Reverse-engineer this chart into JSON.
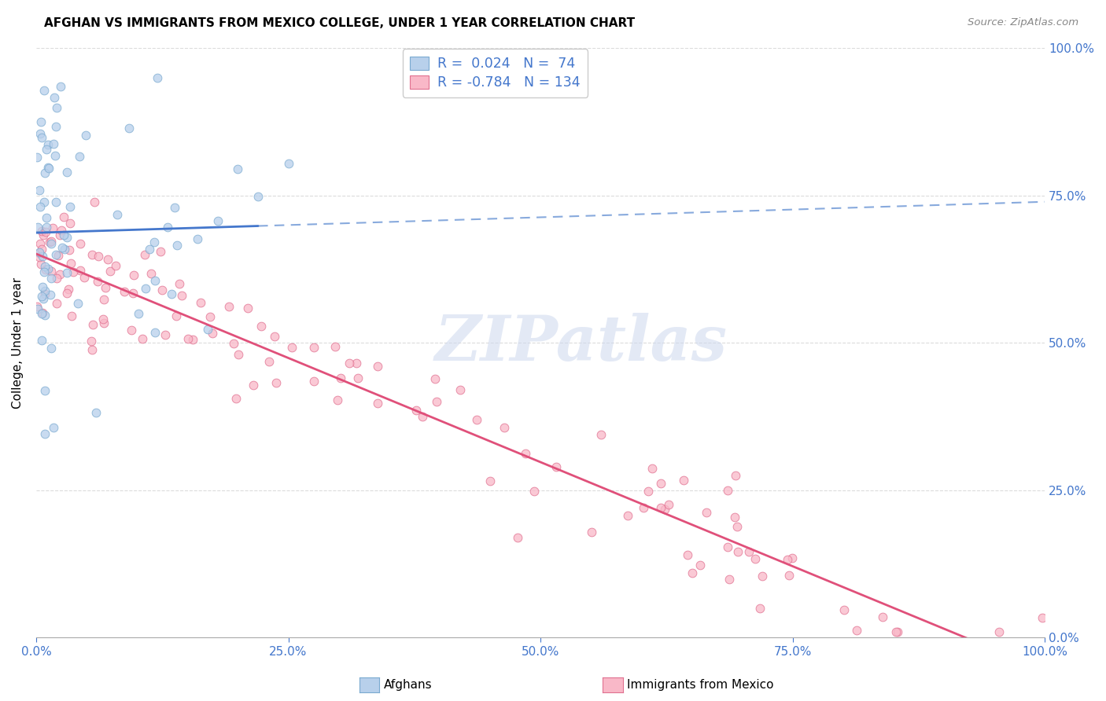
{
  "title": "AFGHAN VS IMMIGRANTS FROM MEXICO COLLEGE, UNDER 1 YEAR CORRELATION CHART",
  "source": "Source: ZipAtlas.com",
  "ylabel": "College, Under 1 year",
  "xlim": [
    0.0,
    1.0
  ],
  "ylim": [
    0.0,
    1.0
  ],
  "xtick_labels": [
    "0.0%",
    "25.0%",
    "50.0%",
    "75.0%",
    "100.0%"
  ],
  "ytick_labels_right": [
    "0.0%",
    "25.0%",
    "50.0%",
    "75.0%",
    "100.0%"
  ],
  "afghan_fill": "#b8d0eb",
  "afghan_edge": "#7aaad0",
  "mexico_fill": "#f9b8c8",
  "mexico_edge": "#e07090",
  "trend_afghan_solid": "#4477cc",
  "trend_afghan_dash": "#88aadd",
  "trend_mexico": "#e0507a",
  "tick_color": "#4477cc",
  "R_afghan": 0.024,
  "N_afghan": 74,
  "R_mexico": -0.784,
  "N_mexico": 134,
  "watermark_text": "ZIPatlas",
  "legend_label_afghan": "Afghans",
  "legend_label_mexico": "Immigrants from Mexico",
  "grid_color": "#d8d8d8",
  "marker_size": 60,
  "marker_lw": 0.7,
  "marker_alpha": 0.75
}
